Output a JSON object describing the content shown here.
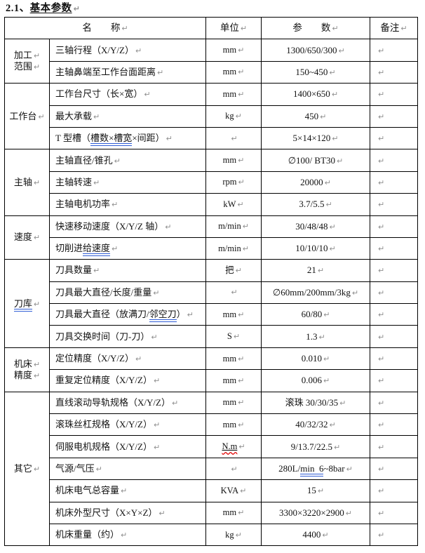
{
  "title": {
    "number": "2.1、",
    "text": "基本参数"
  },
  "marks": {
    "pilcrow": "↵"
  },
  "colors": {
    "border_black": "#000000",
    "grammar_blue": "#2e5cd5",
    "spell_red": "#e00000",
    "pilcrow_gray": "#8f8f8f",
    "background": "#ffffff"
  },
  "header": {
    "name": "名　　称",
    "unit": "单位",
    "param": "参　　数",
    "remark": "备注"
  },
  "groups": [
    {
      "label_lines": [
        "加工",
        "范围"
      ],
      "rows": [
        {
          "name": "三轴行程（X/Y/Z）",
          "unit": "mm",
          "param": "1300/650/300"
        },
        {
          "name": "主轴鼻端至工作台面距离",
          "unit": "mm",
          "param": "150~450"
        }
      ]
    },
    {
      "label_lines": [
        "工作台"
      ],
      "rows": [
        {
          "name": "工作台尺寸（长×宽）",
          "unit": "mm",
          "param": "1400×650"
        },
        {
          "name": "最大承载",
          "unit": "kg",
          "param": "450"
        },
        {
          "name_pre": "T 型槽（",
          "name_marked": "槽数×槽宽",
          "name_post": "×间距）",
          "unit": "",
          "param": "5×14×120"
        }
      ]
    },
    {
      "label_lines": [
        "主轴"
      ],
      "rows": [
        {
          "name": "主轴直径/锥孔",
          "unit": "mm",
          "param": "∅100/ BT30"
        },
        {
          "name": "主轴转速",
          "unit": "rpm",
          "param": "20000"
        },
        {
          "name": "主轴电机功率",
          "unit": "kW",
          "param": "3.7/5.5"
        }
      ]
    },
    {
      "label_lines": [
        "速度"
      ],
      "rows": [
        {
          "name": "快速移动速度（X/Y/Z 轴）",
          "unit": "m/min",
          "param": "30/48/48"
        },
        {
          "name_pre": "切削进",
          "name_marked": "给速度",
          "name_post": "",
          "unit": "m/min",
          "param": "10/10/10"
        }
      ]
    },
    {
      "label": "刀库",
      "rows": [
        {
          "name": "刀具数量",
          "unit": "把",
          "param": "21"
        },
        {
          "name": "刀具最大直径/长度/重量",
          "unit": "",
          "param": "∅60mm/200mm/3kg"
        },
        {
          "name_pre": "刀具最大直径（放满刀/",
          "name_marked": "邻空刀",
          "name_post": "）",
          "unit": "mm",
          "param": "60/80"
        },
        {
          "name": "刀具交换时间（刀-刀）",
          "unit": "S",
          "param": "1.3"
        }
      ]
    },
    {
      "label_lines": [
        "机床",
        "精度"
      ],
      "rows": [
        {
          "name": "定位精度（X/Y/Z）",
          "unit": "mm",
          "param": "0.010"
        },
        {
          "name": "重复定位精度（X/Y/Z）",
          "unit": "mm",
          "param": "0.006"
        }
      ]
    },
    {
      "label_lines": [
        "其它"
      ],
      "rows": [
        {
          "name": "直线滚动导轨规格（X/Y/Z）",
          "unit": "mm",
          "param": "滚珠 30/30/35"
        },
        {
          "name": "滚珠丝杠规格（X/Y/Z）",
          "unit": "mm",
          "param": "40/32/32"
        },
        {
          "name": "伺服电机规格（X/Y/Z）",
          "unit": "N.m",
          "param": "9/13.7/22.5"
        },
        {
          "name": "气源/气压",
          "unit": "",
          "param_pre": "280L/",
          "param_marked": "min  6",
          "param_post": "~8bar"
        },
        {
          "name": "机床电气总容量",
          "unit": "KVA",
          "param": "15"
        },
        {
          "name": "机床外型尺寸（X×Y×Z）",
          "unit": "mm",
          "param": "3300×3220×2900"
        },
        {
          "name": "机床重量（约）",
          "unit": "kg",
          "param": "4400"
        }
      ]
    }
  ]
}
